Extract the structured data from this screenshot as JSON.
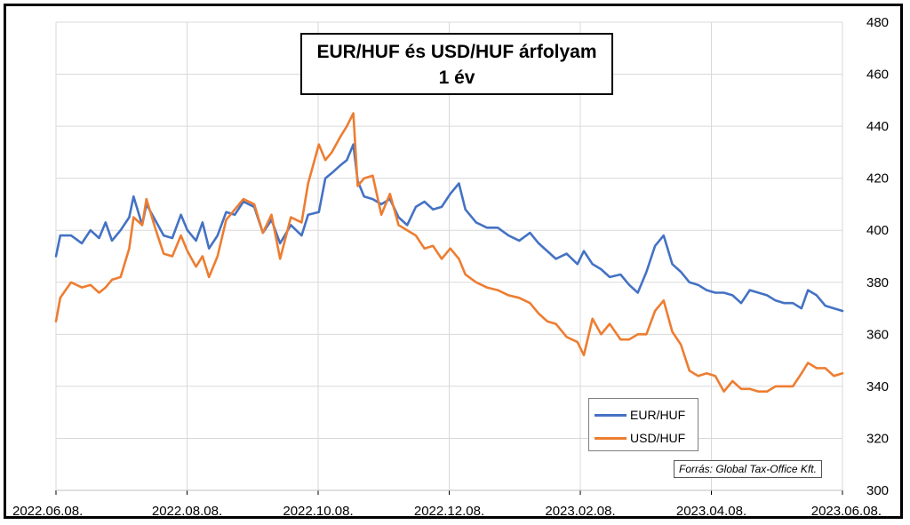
{
  "title": {
    "line1": "EUR/HUF és USD/HUF árfolyam",
    "line2": "1 év"
  },
  "source": "Forrás: Global Tax-Office Kft.",
  "colors": {
    "eur": "#4472C4",
    "usd": "#ED7D31",
    "grid": "#d9d9d9"
  },
  "legend_placement": "bottom-right",
  "chart_data": {
    "type": "line",
    "title": "EUR/HUF és USD/HUF árfolyam 1 év",
    "xlabel": "",
    "ylabel": "",
    "y_axis_side": "right",
    "ylim": [
      300,
      480
    ],
    "yticks": [
      "300",
      "320",
      "340",
      "360",
      "380",
      "400",
      "420",
      "440",
      "460",
      "480"
    ],
    "xlim": [
      "2022-06-08",
      "2023-06-08"
    ],
    "xticks": [
      "2022.06.08.",
      "2022.08.08.",
      "2022.10.08.",
      "2022.12.08.",
      "2023.02.08.",
      "2023.04.08.",
      "2023.06.08."
    ],
    "grid": true,
    "series": [
      {
        "name": "EUR/HUF",
        "color": "#4472C4",
        "points": [
          [
            "2022-06-08",
            390
          ],
          [
            "2022-06-10",
            398
          ],
          [
            "2022-06-15",
            398
          ],
          [
            "2022-06-20",
            395
          ],
          [
            "2022-06-24",
            400
          ],
          [
            "2022-06-28",
            397
          ],
          [
            "2022-07-01",
            403
          ],
          [
            "2022-07-04",
            396
          ],
          [
            "2022-07-08",
            400
          ],
          [
            "2022-07-12",
            405
          ],
          [
            "2022-07-14",
            413
          ],
          [
            "2022-07-18",
            402
          ],
          [
            "2022-07-20",
            410
          ],
          [
            "2022-07-24",
            404
          ],
          [
            "2022-07-28",
            398
          ],
          [
            "2022-08-01",
            397
          ],
          [
            "2022-08-05",
            406
          ],
          [
            "2022-08-08",
            400
          ],
          [
            "2022-08-12",
            396
          ],
          [
            "2022-08-15",
            403
          ],
          [
            "2022-08-18",
            393
          ],
          [
            "2022-08-22",
            398
          ],
          [
            "2022-08-26",
            407
          ],
          [
            "2022-08-30",
            406
          ],
          [
            "2022-09-03",
            411
          ],
          [
            "2022-09-08",
            409
          ],
          [
            "2022-09-12",
            399
          ],
          [
            "2022-09-16",
            404
          ],
          [
            "2022-09-20",
            395
          ],
          [
            "2022-09-25",
            402
          ],
          [
            "2022-09-30",
            398
          ],
          [
            "2022-10-03",
            406
          ],
          [
            "2022-10-08",
            407
          ],
          [
            "2022-10-11",
            420
          ],
          [
            "2022-10-14",
            422
          ],
          [
            "2022-10-18",
            425
          ],
          [
            "2022-10-21",
            427
          ],
          [
            "2022-10-24",
            433
          ],
          [
            "2022-10-26",
            419
          ],
          [
            "2022-10-29",
            413
          ],
          [
            "2022-11-02",
            412
          ],
          [
            "2022-11-06",
            410
          ],
          [
            "2022-11-10",
            412
          ],
          [
            "2022-11-14",
            405
          ],
          [
            "2022-11-18",
            402
          ],
          [
            "2022-11-22",
            409
          ],
          [
            "2022-11-26",
            411
          ],
          [
            "2022-11-30",
            408
          ],
          [
            "2022-12-04",
            409
          ],
          [
            "2022-12-08",
            414
          ],
          [
            "2022-12-12",
            418
          ],
          [
            "2022-12-15",
            408
          ],
          [
            "2022-12-20",
            403
          ],
          [
            "2022-12-25",
            401
          ],
          [
            "2022-12-30",
            401
          ],
          [
            "2023-01-04",
            398
          ],
          [
            "2023-01-09",
            396
          ],
          [
            "2023-01-14",
            399
          ],
          [
            "2023-01-18",
            395
          ],
          [
            "2023-01-22",
            392
          ],
          [
            "2023-01-26",
            389
          ],
          [
            "2023-01-31",
            391
          ],
          [
            "2023-02-05",
            387
          ],
          [
            "2023-02-08",
            392
          ],
          [
            "2023-02-12",
            387
          ],
          [
            "2023-02-16",
            385
          ],
          [
            "2023-02-20",
            382
          ],
          [
            "2023-02-25",
            383
          ],
          [
            "2023-03-01",
            379
          ],
          [
            "2023-03-05",
            376
          ],
          [
            "2023-03-09",
            384
          ],
          [
            "2023-03-13",
            394
          ],
          [
            "2023-03-17",
            398
          ],
          [
            "2023-03-21",
            387
          ],
          [
            "2023-03-25",
            384
          ],
          [
            "2023-03-29",
            380
          ],
          [
            "2023-04-02",
            379
          ],
          [
            "2023-04-06",
            377
          ],
          [
            "2023-04-10",
            376
          ],
          [
            "2023-04-14",
            376
          ],
          [
            "2023-04-18",
            375
          ],
          [
            "2023-04-22",
            372
          ],
          [
            "2023-04-26",
            377
          ],
          [
            "2023-04-30",
            376
          ],
          [
            "2023-05-04",
            375
          ],
          [
            "2023-05-08",
            373
          ],
          [
            "2023-05-12",
            372
          ],
          [
            "2023-05-16",
            372
          ],
          [
            "2023-05-20",
            370
          ],
          [
            "2023-05-23",
            377
          ],
          [
            "2023-05-27",
            375
          ],
          [
            "2023-05-31",
            371
          ],
          [
            "2023-06-04",
            370
          ],
          [
            "2023-06-08",
            369
          ]
        ]
      },
      {
        "name": "USD/HUF",
        "color": "#ED7D31",
        "points": [
          [
            "2022-06-08",
            365
          ],
          [
            "2022-06-10",
            374
          ],
          [
            "2022-06-15",
            380
          ],
          [
            "2022-06-20",
            378
          ],
          [
            "2022-06-24",
            379
          ],
          [
            "2022-06-28",
            376
          ],
          [
            "2022-07-01",
            378
          ],
          [
            "2022-07-04",
            381
          ],
          [
            "2022-07-08",
            382
          ],
          [
            "2022-07-12",
            393
          ],
          [
            "2022-07-14",
            405
          ],
          [
            "2022-07-18",
            402
          ],
          [
            "2022-07-20",
            412
          ],
          [
            "2022-07-24",
            401
          ],
          [
            "2022-07-28",
            391
          ],
          [
            "2022-08-01",
            390
          ],
          [
            "2022-08-05",
            398
          ],
          [
            "2022-08-08",
            392
          ],
          [
            "2022-08-12",
            386
          ],
          [
            "2022-08-15",
            390
          ],
          [
            "2022-08-18",
            382
          ],
          [
            "2022-08-22",
            390
          ],
          [
            "2022-08-26",
            404
          ],
          [
            "2022-08-30",
            408
          ],
          [
            "2022-09-03",
            412
          ],
          [
            "2022-09-08",
            410
          ],
          [
            "2022-09-12",
            399
          ],
          [
            "2022-09-16",
            406
          ],
          [
            "2022-09-20",
            389
          ],
          [
            "2022-09-25",
            405
          ],
          [
            "2022-09-30",
            403
          ],
          [
            "2022-10-03",
            418
          ],
          [
            "2022-10-08",
            433
          ],
          [
            "2022-10-11",
            427
          ],
          [
            "2022-10-14",
            430
          ],
          [
            "2022-10-18",
            436
          ],
          [
            "2022-10-21",
            440
          ],
          [
            "2022-10-24",
            445
          ],
          [
            "2022-10-26",
            417
          ],
          [
            "2022-10-29",
            420
          ],
          [
            "2022-11-02",
            421
          ],
          [
            "2022-11-06",
            406
          ],
          [
            "2022-11-10",
            414
          ],
          [
            "2022-11-14",
            402
          ],
          [
            "2022-11-18",
            400
          ],
          [
            "2022-11-22",
            398
          ],
          [
            "2022-11-26",
            393
          ],
          [
            "2022-11-30",
            394
          ],
          [
            "2022-12-04",
            389
          ],
          [
            "2022-12-08",
            393
          ],
          [
            "2022-12-12",
            389
          ],
          [
            "2022-12-15",
            383
          ],
          [
            "2022-12-20",
            380
          ],
          [
            "2022-12-25",
            378
          ],
          [
            "2022-12-30",
            377
          ],
          [
            "2023-01-04",
            375
          ],
          [
            "2023-01-09",
            374
          ],
          [
            "2023-01-14",
            372
          ],
          [
            "2023-01-18",
            368
          ],
          [
            "2023-01-22",
            365
          ],
          [
            "2023-01-26",
            364
          ],
          [
            "2023-01-31",
            359
          ],
          [
            "2023-02-05",
            357
          ],
          [
            "2023-02-08",
            352
          ],
          [
            "2023-02-12",
            366
          ],
          [
            "2023-02-16",
            360
          ],
          [
            "2023-02-20",
            364
          ],
          [
            "2023-02-25",
            358
          ],
          [
            "2023-03-01",
            358
          ],
          [
            "2023-03-05",
            360
          ],
          [
            "2023-03-09",
            360
          ],
          [
            "2023-03-13",
            369
          ],
          [
            "2023-03-17",
            373
          ],
          [
            "2023-03-21",
            361
          ],
          [
            "2023-03-25",
            356
          ],
          [
            "2023-03-29",
            346
          ],
          [
            "2023-04-02",
            344
          ],
          [
            "2023-04-06",
            345
          ],
          [
            "2023-04-10",
            344
          ],
          [
            "2023-04-14",
            338
          ],
          [
            "2023-04-18",
            342
          ],
          [
            "2023-04-22",
            339
          ],
          [
            "2023-04-26",
            339
          ],
          [
            "2023-04-30",
            338
          ],
          [
            "2023-05-04",
            338
          ],
          [
            "2023-05-08",
            340
          ],
          [
            "2023-05-12",
            340
          ],
          [
            "2023-05-16",
            340
          ],
          [
            "2023-05-20",
            345
          ],
          [
            "2023-05-23",
            349
          ],
          [
            "2023-05-27",
            347
          ],
          [
            "2023-05-31",
            347
          ],
          [
            "2023-06-04",
            344
          ],
          [
            "2023-06-08",
            345
          ]
        ]
      }
    ]
  }
}
